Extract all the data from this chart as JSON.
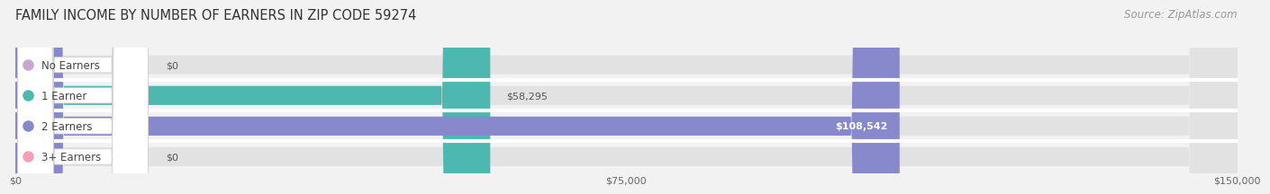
{
  "title": "FAMILY INCOME BY NUMBER OF EARNERS IN ZIP CODE 59274",
  "source": "Source: ZipAtlas.com",
  "categories": [
    "No Earners",
    "1 Earner",
    "2 Earners",
    "3+ Earners"
  ],
  "values": [
    0,
    58295,
    108542,
    0
  ],
  "bar_colors": [
    "#c4a8d0",
    "#4db8b0",
    "#8888cc",
    "#f4a0b8"
  ],
  "value_labels": [
    "$0",
    "$58,295",
    "$108,542",
    "$0"
  ],
  "xlim": [
    0,
    150000
  ],
  "xticks": [
    0,
    75000,
    150000
  ],
  "xtick_labels": [
    "$0",
    "$75,000",
    "$150,000"
  ],
  "background_color": "#f2f2f2",
  "bar_bg_color": "#e2e2e2",
  "title_fontsize": 10.5,
  "source_fontsize": 8.5,
  "label_fontsize": 8.5,
  "value_fontsize": 8.0
}
